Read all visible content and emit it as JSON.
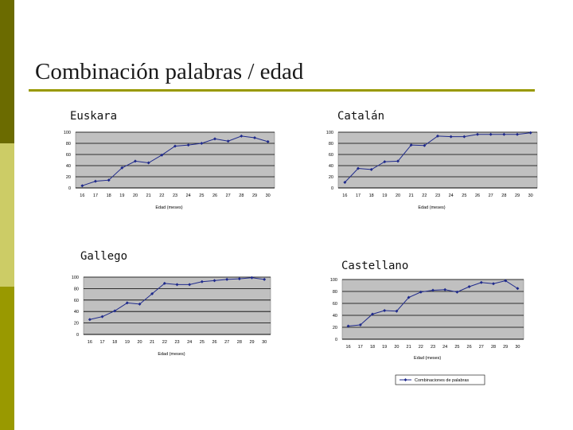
{
  "slide": {
    "title": "Combinación palabras / edad"
  },
  "colors": {
    "accent_dark": "#6b6b00",
    "accent_light": "#cccc66",
    "accent_mid": "#999900",
    "plot_bg": "#c0c0c0",
    "series": "#1f2a8c"
  },
  "chart_data": [
    {
      "type": "line",
      "label": "Euskara",
      "xlabel": "Edad (meses)",
      "x": [
        16,
        17,
        18,
        19,
        20,
        21,
        22,
        23,
        24,
        25,
        26,
        27,
        28,
        29,
        30
      ],
      "ylim": [
        0,
        100
      ],
      "yticks": [
        0,
        20,
        40,
        60,
        80,
        100
      ],
      "grid": "y",
      "series": [
        {
          "values": [
            4,
            12,
            14,
            36,
            48,
            45,
            59,
            75,
            77,
            80,
            88,
            84,
            93,
            90,
            83
          ]
        }
      ]
    },
    {
      "type": "line",
      "label": "Catalán",
      "xlabel": "Edad (meses)",
      "x": [
        16,
        17,
        18,
        19,
        20,
        21,
        22,
        23,
        24,
        25,
        26,
        27,
        28,
        29,
        30
      ],
      "ylim": [
        0,
        100
      ],
      "yticks": [
        0,
        20,
        40,
        60,
        80,
        100
      ],
      "grid": "y",
      "series": [
        {
          "values": [
            10,
            35,
            33,
            47,
            48,
            77,
            76,
            93,
            92,
            92,
            96,
            96,
            96,
            96,
            99
          ]
        }
      ]
    },
    {
      "type": "line",
      "label": "Gallego",
      "xlabel": "Edad (meses)",
      "x": [
        16,
        17,
        18,
        19,
        20,
        21,
        22,
        23,
        24,
        25,
        26,
        27,
        28,
        29,
        30
      ],
      "ylim": [
        0,
        100
      ],
      "yticks": [
        0,
        20,
        40,
        60,
        80,
        100
      ],
      "grid": "y",
      "series": [
        {
          "values": [
            26,
            31,
            41,
            55,
            53,
            71,
            89,
            87,
            87,
            92,
            94,
            96,
            97,
            99,
            96
          ]
        }
      ]
    },
    {
      "type": "line",
      "label": "Castellano",
      "xlabel": "Edad (meses)",
      "x": [
        16,
        17,
        18,
        19,
        20,
        21,
        22,
        23,
        24,
        25,
        26,
        27,
        28,
        29,
        30
      ],
      "ylim": [
        0,
        100
      ],
      "yticks": [
        0,
        20,
        40,
        60,
        80,
        100
      ],
      "grid": "y",
      "legend": {
        "placement": "bottom",
        "entry": "Combinaciones de palabras"
      },
      "series": [
        {
          "name": "Combinaciones de palabras",
          "values": [
            22,
            24,
            42,
            48,
            47,
            70,
            79,
            82,
            83,
            79,
            88,
            95,
            93,
            98,
            85
          ]
        }
      ]
    }
  ]
}
